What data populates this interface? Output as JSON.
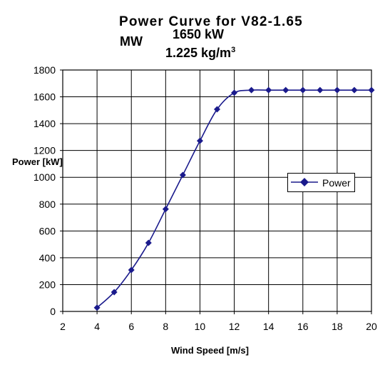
{
  "title": {
    "line1": "Power Curve for V82-1.65",
    "line2a": "MW",
    "line2b": "1650 kW",
    "line3_base": "1.225 kg/m",
    "line3_sup": "3"
  },
  "colors": {
    "series": "#1a1a8c",
    "grid": "#000000",
    "axis": "#000000"
  },
  "chart_data": {
    "type": "line",
    "title": "Power Curve for V82-1.65 MW 1650 kW 1.225 kg/m3",
    "xlabel": "Wind Speed [m/s]",
    "ylabel": "Power [kW]",
    "xlim": [
      2,
      20
    ],
    "ylim": [
      0,
      1800
    ],
    "xticks": [
      2,
      4,
      6,
      8,
      10,
      12,
      14,
      16,
      18,
      20
    ],
    "yticks": [
      0,
      200,
      400,
      600,
      800,
      1000,
      1200,
      1400,
      1600,
      1800
    ],
    "grid": true,
    "legend_position": "right",
    "series": [
      {
        "name": "Power",
        "marker": "diamond",
        "x": [
          4,
          5,
          6,
          7,
          8,
          9,
          10,
          11,
          12,
          13,
          14,
          15,
          16,
          17,
          18,
          19,
          20
        ],
        "y": [
          28,
          144,
          309,
          511,
          763,
          1017,
          1272,
          1507,
          1630,
          1650,
          1650,
          1650,
          1650,
          1650,
          1650,
          1650,
          1650
        ]
      }
    ]
  }
}
